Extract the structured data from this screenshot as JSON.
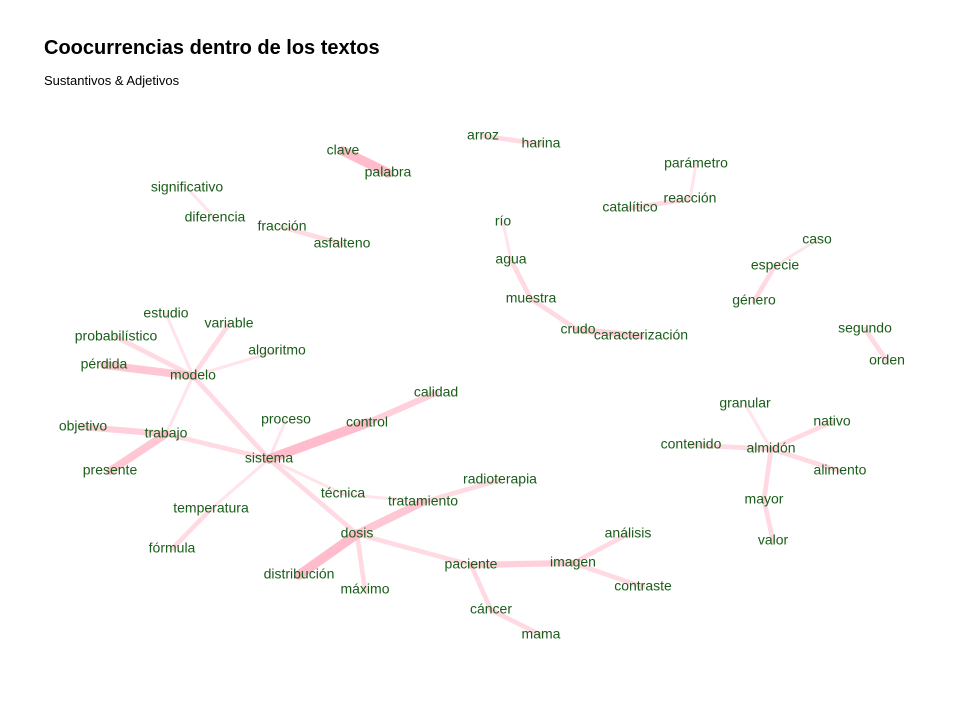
{
  "header": {
    "title": "Coocurrencias dentro de los textos",
    "subtitle": "Sustantivos & Adjetivos"
  },
  "graph": {
    "edge_color": "#ffb6c8",
    "label_color": "#1a5d1a",
    "nodes": [
      {
        "id": "clave"
      },
      {
        "id": "palabra"
      },
      {
        "id": "arroz"
      },
      {
        "id": "harina"
      },
      {
        "id": "parámetro"
      },
      {
        "id": "reacción"
      },
      {
        "id": "catalítico"
      },
      {
        "id": "significativo"
      },
      {
        "id": "diferencia"
      },
      {
        "id": "fracción"
      },
      {
        "id": "asfalteno"
      },
      {
        "id": "río"
      },
      {
        "id": "agua"
      },
      {
        "id": "muestra"
      },
      {
        "id": "crudo"
      },
      {
        "id": "caracterización"
      },
      {
        "id": "caso"
      },
      {
        "id": "especie"
      },
      {
        "id": "género"
      },
      {
        "id": "segundo"
      },
      {
        "id": "orden"
      },
      {
        "id": "estudio"
      },
      {
        "id": "variable"
      },
      {
        "id": "probabilístico"
      },
      {
        "id": "algoritmo"
      },
      {
        "id": "pérdida"
      },
      {
        "id": "modelo"
      },
      {
        "id": "calidad"
      },
      {
        "id": "objetivo"
      },
      {
        "id": "trabajo"
      },
      {
        "id": "proceso"
      },
      {
        "id": "control"
      },
      {
        "id": "sistema"
      },
      {
        "id": "presente"
      },
      {
        "id": "granular"
      },
      {
        "id": "nativo"
      },
      {
        "id": "contenido"
      },
      {
        "id": "almidón"
      },
      {
        "id": "alimento"
      },
      {
        "id": "mayor"
      },
      {
        "id": "valor"
      },
      {
        "id": "radioterapia"
      },
      {
        "id": "técnica"
      },
      {
        "id": "tratamiento"
      },
      {
        "id": "temperatura"
      },
      {
        "id": "dosis"
      },
      {
        "id": "análisis"
      },
      {
        "id": "imagen"
      },
      {
        "id": "paciente"
      },
      {
        "id": "fórmula"
      },
      {
        "id": "distribución"
      },
      {
        "id": "máximo"
      },
      {
        "id": "contraste"
      },
      {
        "id": "cáncer"
      },
      {
        "id": "mama"
      }
    ],
    "edges": [
      {
        "source": "clave",
        "target": "palabra",
        "weight": 5
      },
      {
        "source": "arroz",
        "target": "harina",
        "weight": 2
      },
      {
        "source": "parámetro",
        "target": "reacción",
        "weight": 1
      },
      {
        "source": "reacción",
        "target": "catalítico",
        "weight": 2
      },
      {
        "source": "significativo",
        "target": "diferencia",
        "weight": 1
      },
      {
        "source": "fracción",
        "target": "asfalteno",
        "weight": 2
      },
      {
        "source": "río",
        "target": "agua",
        "weight": 1
      },
      {
        "source": "agua",
        "target": "muestra",
        "weight": 2
      },
      {
        "source": "muestra",
        "target": "crudo",
        "weight": 2
      },
      {
        "source": "crudo",
        "target": "caracterización",
        "weight": 3
      },
      {
        "source": "caso",
        "target": "especie",
        "weight": 1
      },
      {
        "source": "especie",
        "target": "género",
        "weight": 2
      },
      {
        "source": "segundo",
        "target": "orden",
        "weight": 2
      },
      {
        "source": "estudio",
        "target": "modelo",
        "weight": 1
      },
      {
        "source": "variable",
        "target": "modelo",
        "weight": 2
      },
      {
        "source": "probabilístico",
        "target": "modelo",
        "weight": 2
      },
      {
        "source": "algoritmo",
        "target": "modelo",
        "weight": 1
      },
      {
        "source": "pérdida",
        "target": "modelo",
        "weight": 4
      },
      {
        "source": "modelo",
        "target": "trabajo",
        "weight": 1
      },
      {
        "source": "modelo",
        "target": "sistema",
        "weight": 2
      },
      {
        "source": "objetivo",
        "target": "trabajo",
        "weight": 3
      },
      {
        "source": "trabajo",
        "target": "presente",
        "weight": 4
      },
      {
        "source": "trabajo",
        "target": "sistema",
        "weight": 2
      },
      {
        "source": "proceso",
        "target": "sistema",
        "weight": 1
      },
      {
        "source": "sistema",
        "target": "control",
        "weight": 5
      },
      {
        "source": "control",
        "target": "calidad",
        "weight": 3
      },
      {
        "source": "sistema",
        "target": "temperatura",
        "weight": 1
      },
      {
        "source": "sistema",
        "target": "técnica",
        "weight": 1
      },
      {
        "source": "sistema",
        "target": "dosis",
        "weight": 2
      },
      {
        "source": "temperatura",
        "target": "fórmula",
        "weight": 2
      },
      {
        "source": "técnica",
        "target": "tratamiento",
        "weight": 1
      },
      {
        "source": "tratamiento",
        "target": "radioterapia",
        "weight": 2
      },
      {
        "source": "dosis",
        "target": "tratamiento",
        "weight": 4
      },
      {
        "source": "dosis",
        "target": "distribución",
        "weight": 5
      },
      {
        "source": "dosis",
        "target": "máximo",
        "weight": 2
      },
      {
        "source": "dosis",
        "target": "paciente",
        "weight": 2
      },
      {
        "source": "paciente",
        "target": "imagen",
        "weight": 3
      },
      {
        "source": "imagen",
        "target": "análisis",
        "weight": 2
      },
      {
        "source": "imagen",
        "target": "contraste",
        "weight": 2
      },
      {
        "source": "paciente",
        "target": "cáncer",
        "weight": 2
      },
      {
        "source": "cáncer",
        "target": "mama",
        "weight": 2
      },
      {
        "source": "granular",
        "target": "almidón",
        "weight": 1
      },
      {
        "source": "nativo",
        "target": "almidón",
        "weight": 2
      },
      {
        "source": "contenido",
        "target": "almidón",
        "weight": 2
      },
      {
        "source": "almidón",
        "target": "alimento",
        "weight": 2
      },
      {
        "source": "almidón",
        "target": "mayor",
        "weight": 2
      },
      {
        "source": "mayor",
        "target": "valor",
        "weight": 2
      }
    ]
  }
}
